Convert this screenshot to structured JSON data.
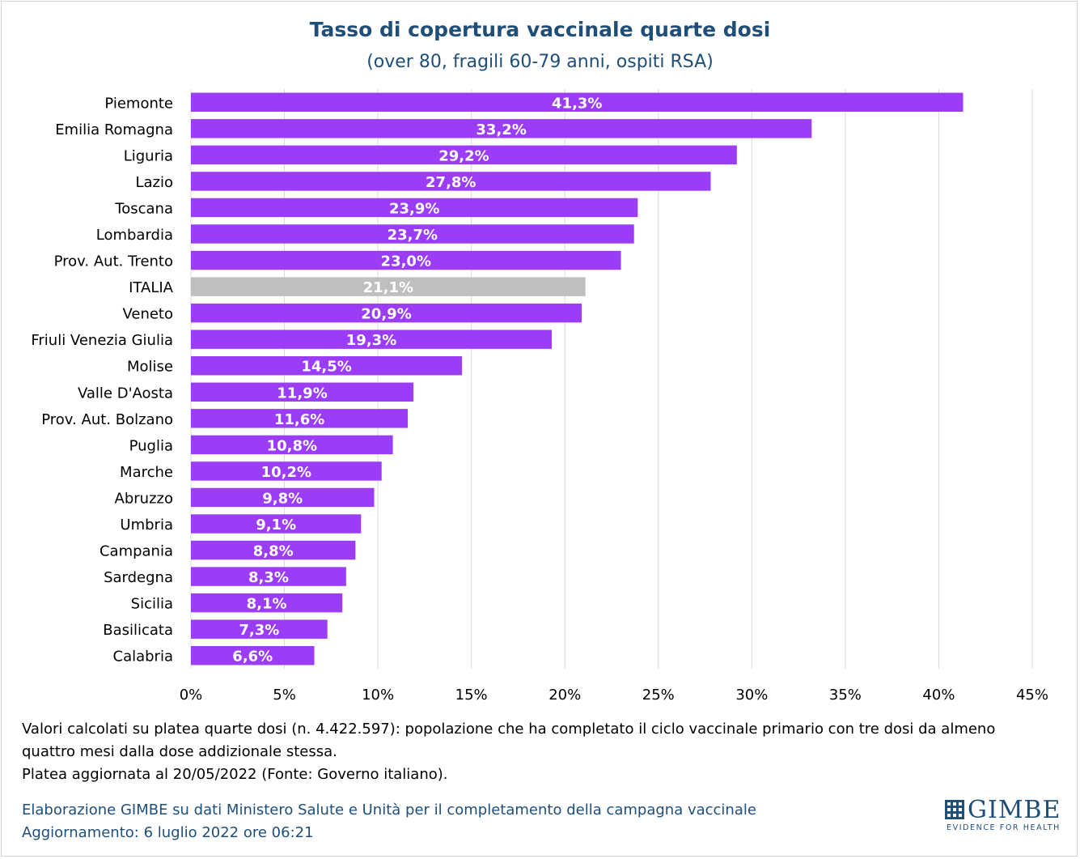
{
  "chart_data": {
    "type": "bar",
    "orientation": "horizontal",
    "title": "Tasso di copertura vaccinale quarte dosi",
    "subtitle": "(over 80, fragili 60-79 anni, ospiti RSA)",
    "categories": [
      "Piemonte",
      "Emilia Romagna",
      "Liguria",
      "Lazio",
      "Toscana",
      "Lombardia",
      "Prov. Aut. Trento",
      "ITALIA",
      "Veneto",
      "Friuli Venezia Giulia",
      "Molise",
      "Valle D'Aosta",
      "Prov. Aut. Bolzano",
      "Puglia",
      "Marche",
      "Abruzzo",
      "Umbria",
      "Campania",
      "Sardegna",
      "Sicilia",
      "Basilicata",
      "Calabria"
    ],
    "values": [
      41.3,
      33.2,
      29.2,
      27.8,
      23.9,
      23.7,
      23.0,
      21.1,
      20.9,
      19.3,
      14.5,
      11.9,
      11.6,
      10.8,
      10.2,
      9.8,
      9.1,
      8.8,
      8.3,
      8.1,
      7.3,
      6.6
    ],
    "data_labels": [
      "41,3%",
      "33,2%",
      "29,2%",
      "27,8%",
      "23,9%",
      "23,7%",
      "23,0%",
      "21,1%",
      "20,9%",
      "19,3%",
      "14,5%",
      "11,9%",
      "11,6%",
      "10,8%",
      "10,2%",
      "9,8%",
      "9,1%",
      "8,8%",
      "8,3%",
      "8,1%",
      "7,3%",
      "6,6%"
    ],
    "xlim": [
      0,
      45
    ],
    "x_ticks": [
      "0%",
      "5%",
      "10%",
      "15%",
      "20%",
      "25%",
      "30%",
      "35%",
      "40%",
      "45%"
    ],
    "grid": true,
    "legend": false,
    "colors": {
      "bar": "#9b3cf7",
      "highlight": "#bfbfbf",
      "highlight_category": "ITALIA",
      "label": "#ffffff",
      "grid": "#d9d9d9"
    }
  },
  "notes": {
    "line1": "Valori calcolati su platea quarte dosi (n. 4.422.597): popolazione che ha completato il ciclo vaccinale primario con tre dosi da almeno",
    "line2": "quattro mesi dalla dose addizionale stessa.",
    "line3": "Platea aggiornata al 20/05/2022 (Fonte: Governo italiano)."
  },
  "credits": {
    "line1": "Elaborazione GIMBE su dati Ministero Salute e Unità per il completamento della campagna vaccinale",
    "line2": "Aggiornamento: 6 luglio 2022 ore 06:21"
  },
  "logo": {
    "text": "GIMBE",
    "tagline": "EVIDENCE FOR HEALTH",
    "icon": "gimbe-grid-logo-icon"
  }
}
